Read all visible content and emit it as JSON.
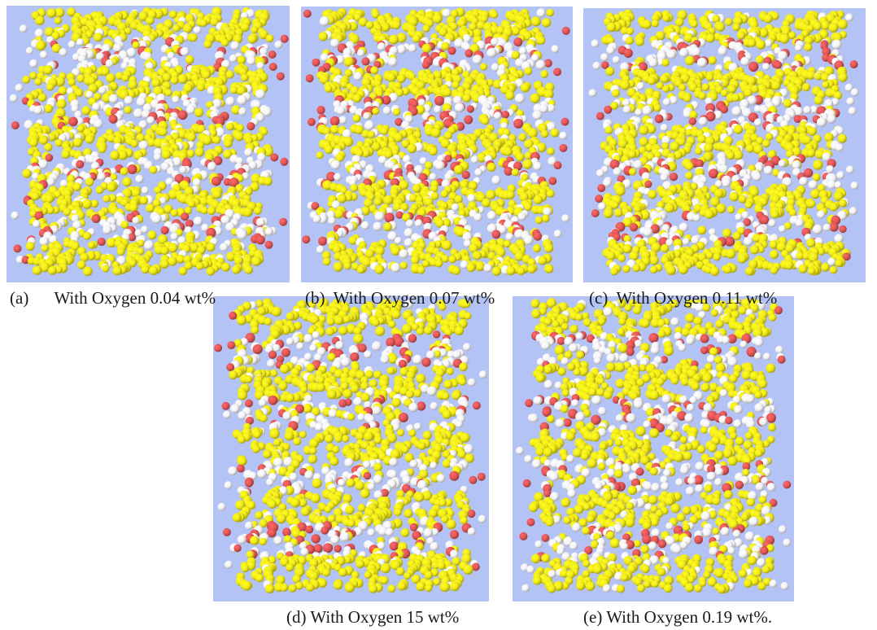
{
  "figure": {
    "colors": {
      "background": "#b3c3f5",
      "sulfur_yellow": "#f0e81a",
      "hydrogen_white": "#f2f2f6",
      "oxygen_red": "#e05555"
    },
    "panels": [
      {
        "id": "a",
        "caption_label": "(a)",
        "caption_text": "With Oxygen 0.04 wt%"
      },
      {
        "id": "b",
        "caption_label": "(b)",
        "caption_text": "With Oxygen 0.07 wt%"
      },
      {
        "id": "c",
        "caption_label": "(c)",
        "caption_text": "With Oxygen 0.11 wt%"
      },
      {
        "id": "d",
        "caption_label": "(d)",
        "caption_text": "With Oxygen 15 wt%"
      },
      {
        "id": "e",
        "caption_label": "(e)",
        "caption_text": "With Oxygen 0.19 wt%."
      }
    ]
  }
}
